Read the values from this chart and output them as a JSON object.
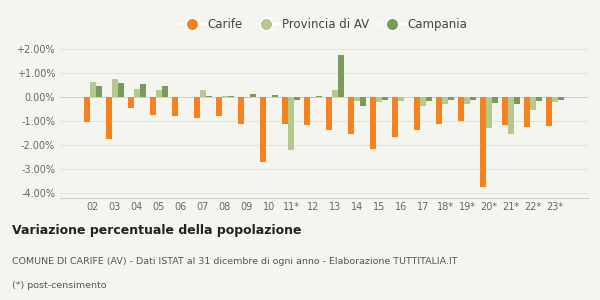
{
  "categories": [
    "02",
    "03",
    "04",
    "05",
    "06",
    "07",
    "08",
    "09",
    "10",
    "11*",
    "12",
    "13",
    "14",
    "15",
    "16",
    "17",
    "18*",
    "19*",
    "20*",
    "21*",
    "22*",
    "23*"
  ],
  "carife": [
    -1.05,
    -1.75,
    -0.45,
    -0.75,
    -0.8,
    -0.85,
    -0.8,
    -1.1,
    -2.7,
    -1.1,
    -1.15,
    -1.35,
    -1.55,
    -2.15,
    -1.65,
    -1.35,
    -1.1,
    -1.0,
    -3.75,
    -1.15,
    -1.25,
    -1.2
  ],
  "provincia_av": [
    0.65,
    0.75,
    0.35,
    0.3,
    0.02,
    0.3,
    0.05,
    -0.05,
    0.0,
    -2.2,
    -0.05,
    0.3,
    -0.15,
    -0.2,
    -0.15,
    -0.35,
    -0.3,
    -0.3,
    -1.3,
    -1.55,
    -0.55,
    -0.2
  ],
  "campania": [
    0.45,
    0.6,
    0.55,
    0.45,
    0.0,
    0.05,
    0.05,
    0.15,
    0.1,
    -0.1,
    0.05,
    1.75,
    -0.35,
    -0.1,
    0.0,
    -0.15,
    -0.1,
    -0.1,
    -0.25,
    -0.3,
    -0.15,
    -0.1
  ],
  "carife_color": "#f5821f",
  "provincia_av_color": "#b5c98e",
  "campania_color": "#7a9a5c",
  "bg_color": "#f5f5f0",
  "grid_color": "#dddddd",
  "title_bold": "Variazione percentuale della popolazione",
  "subtitle": "COMUNE DI CARIFE (AV) - Dati ISTAT al 31 dicembre di ogni anno - Elaborazione TUTTITALIA.IT",
  "footnote": "(*) post-censimento",
  "ylim": [
    -4.2,
    2.3
  ],
  "yticks": [
    -4.0,
    -3.0,
    -2.0,
    -1.0,
    0.0,
    1.0,
    2.0
  ]
}
